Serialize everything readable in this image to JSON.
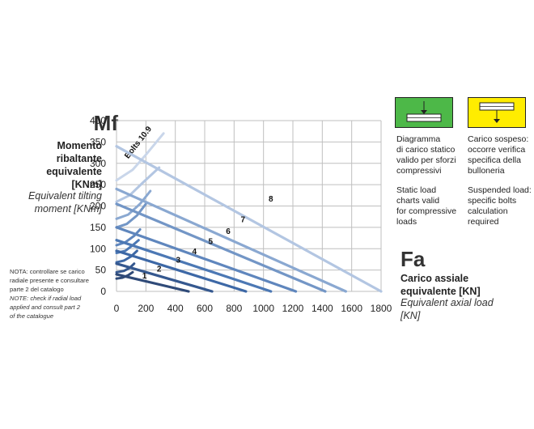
{
  "left_labels": {
    "symbol": "Mf",
    "it_lines": [
      "Momento",
      "ribaltante",
      "equivalente",
      "[KNm]"
    ],
    "en_lines": [
      "Equivalent tilting",
      "moment [KNm]"
    ]
  },
  "notes": {
    "it_lines": [
      "NOTA: controllare se carico",
      "radiale presente e consultare",
      "parte 2 del catalogo"
    ],
    "en_lines": [
      "NOTE: check if radial load",
      "applied and consult part 2",
      "of the catalogue"
    ]
  },
  "fa_labels": {
    "symbol": "Fa",
    "it_lines": [
      "Carico assiale",
      "equivalente [KN]"
    ],
    "en_lines": [
      "Equivalent axial load",
      "[KN]"
    ]
  },
  "legend": {
    "static": {
      "box_color": "#4db848",
      "it_lines": [
        "Diagramma",
        "di carico statico",
        "valido per sforzi",
        "compressivi"
      ],
      "en_lines": [
        "Static load",
        "charts valid",
        "for compressive",
        "loads"
      ]
    },
    "suspended": {
      "box_color": "#ffed00",
      "it_lines": [
        "Carico sospeso:",
        "occorre verifica",
        "specifica della",
        "bulloneria"
      ],
      "en_lines": [
        "Suspended load:",
        "specific bolts",
        "calculation",
        "required"
      ]
    }
  },
  "chart_data": {
    "type": "line",
    "title": "",
    "xlabel": "",
    "ylabel": "",
    "xlim": [
      0,
      1800
    ],
    "ylim": [
      0,
      400
    ],
    "x_ticks": [
      "0",
      "200",
      "400",
      "600",
      "800",
      "1000",
      "1200",
      "1400",
      "1600",
      "1800"
    ],
    "y_ticks": [
      "0",
      "50",
      "100",
      "150",
      "200",
      "250",
      "300",
      "350",
      "400"
    ],
    "grid": true,
    "bolt_curve_label": "Bolts 10.9",
    "series": [
      {
        "name": "1",
        "color": "#2f4a78",
        "points": [
          [
            0,
            40
          ],
          [
            490,
            0
          ]
        ]
      },
      {
        "name": "2",
        "color": "#35588f",
        "points": [
          [
            0,
            65
          ],
          [
            650,
            0
          ]
        ]
      },
      {
        "name": "3",
        "color": "#3d68a6",
        "points": [
          [
            0,
            95
          ],
          [
            880,
            0
          ]
        ]
      },
      {
        "name": "4",
        "color": "#4c78b4",
        "points": [
          [
            0,
            120
          ],
          [
            1050,
            0
          ]
        ]
      },
      {
        "name": "5",
        "color": "#5f86bd",
        "points": [
          [
            0,
            150
          ],
          [
            1220,
            0
          ]
        ]
      },
      {
        "name": "6",
        "color": "#7396c6",
        "points": [
          [
            0,
            205
          ],
          [
            1420,
            0
          ]
        ]
      },
      {
        "name": "7",
        "color": "#8aa8d1",
        "points": [
          [
            0,
            240
          ],
          [
            1560,
            0
          ]
        ]
      },
      {
        "name": "8",
        "color": "#b3c6e2",
        "points": [
          [
            0,
            340
          ],
          [
            1800,
            0
          ]
        ]
      }
    ],
    "bolt_curves": [
      {
        "color": "#2f4a78",
        "points": [
          [
            0,
            30
          ],
          [
            40,
            32
          ],
          [
            80,
            38
          ],
          [
            110,
            45
          ]
        ]
      },
      {
        "color": "#35588f",
        "points": [
          [
            0,
            45
          ],
          [
            50,
            48
          ],
          [
            90,
            55
          ],
          [
            120,
            65
          ]
        ]
      },
      {
        "color": "#3d68a6",
        "points": [
          [
            0,
            68
          ],
          [
            50,
            72
          ],
          [
            100,
            82
          ],
          [
            140,
            95
          ]
        ]
      },
      {
        "color": "#4c78b4",
        "points": [
          [
            0,
            90
          ],
          [
            60,
            95
          ],
          [
            110,
            108
          ],
          [
            150,
            120
          ]
        ]
      },
      {
        "color": "#5f86bd",
        "points": [
          [
            0,
            108
          ],
          [
            60,
            115
          ],
          [
            120,
            130
          ],
          [
            160,
            145
          ]
        ]
      },
      {
        "color": "#7396c6",
        "points": [
          [
            0,
            150
          ],
          [
            70,
            158
          ],
          [
            140,
            178
          ],
          [
            200,
            205
          ]
        ]
      },
      {
        "color": "#8aa8d1",
        "points": [
          [
            0,
            170
          ],
          [
            80,
            180
          ],
          [
            160,
            205
          ],
          [
            230,
            235
          ]
        ]
      },
      {
        "color": "#b3c6e2",
        "points": [
          [
            0,
            210
          ],
          [
            90,
            225
          ],
          [
            180,
            255
          ],
          [
            290,
            290
          ]
        ]
      },
      {
        "color": "#c9d6ea",
        "points": [
          [
            0,
            260
          ],
          [
            110,
            285
          ],
          [
            200,
            320
          ],
          [
            320,
            370
          ]
        ]
      }
    ],
    "number_labels": [
      {
        "text": "1",
        "x": 190,
        "y": 30
      },
      {
        "text": "2",
        "x": 290,
        "y": 46
      },
      {
        "text": "3",
        "x": 420,
        "y": 67
      },
      {
        "text": "4",
        "x": 530,
        "y": 87
      },
      {
        "text": "5",
        "x": 640,
        "y": 111
      },
      {
        "text": "6",
        "x": 760,
        "y": 135
      },
      {
        "text": "7",
        "x": 860,
        "y": 162
      },
      {
        "text": "8",
        "x": 1050,
        "y": 210
      }
    ]
  }
}
